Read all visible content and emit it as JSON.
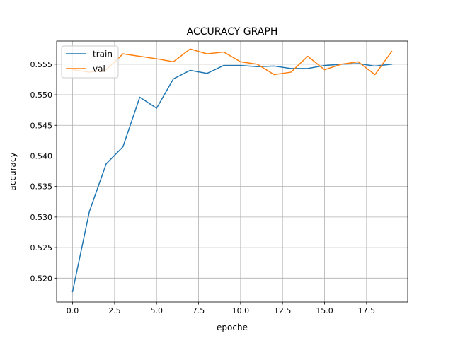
{
  "chart_data": {
    "type": "line",
    "title": "ACCURACY GRAPH",
    "xlabel": "epoche",
    "ylabel": "accuracy",
    "xlim": [
      -0.95,
      19.95
    ],
    "ylim": [
      0.5161,
      0.5588
    ],
    "xticks": [
      0.0,
      2.5,
      5.0,
      7.5,
      10.0,
      12.5,
      15.0,
      17.5
    ],
    "xtick_labels": [
      "0.0",
      "2.5",
      "5.0",
      "7.5",
      "10.0",
      "12.5",
      "15.0",
      "17.5"
    ],
    "yticks": [
      0.52,
      0.525,
      0.53,
      0.535,
      0.54,
      0.545,
      0.55,
      0.555
    ],
    "ytick_labels": [
      "0.520",
      "0.525",
      "0.530",
      "0.535",
      "0.540",
      "0.545",
      "0.550",
      "0.555"
    ],
    "grid": true,
    "legend_position": "top-left",
    "x": [
      0,
      1,
      2,
      3,
      4,
      5,
      6,
      7,
      8,
      9,
      10,
      11,
      12,
      13,
      14,
      15,
      16,
      17,
      18,
      19
    ],
    "series": [
      {
        "name": "train",
        "color": "#1f77b4",
        "values": [
          0.5178,
          0.5309,
          0.5387,
          0.5415,
          0.5496,
          0.5478,
          0.5526,
          0.554,
          0.5535,
          0.5548,
          0.5548,
          0.5546,
          0.5547,
          0.5543,
          0.5543,
          0.5548,
          0.555,
          0.5551,
          0.5547,
          0.555
        ]
      },
      {
        "name": "val",
        "color": "#ff7f0e",
        "values": [
          0.5541,
          0.5537,
          0.5541,
          0.5567,
          0.5563,
          0.5559,
          0.5554,
          0.5575,
          0.5567,
          0.557,
          0.5554,
          0.555,
          0.5533,
          0.5537,
          0.5563,
          0.5541,
          0.555,
          0.5554,
          0.5533,
          0.5571
        ]
      }
    ]
  }
}
